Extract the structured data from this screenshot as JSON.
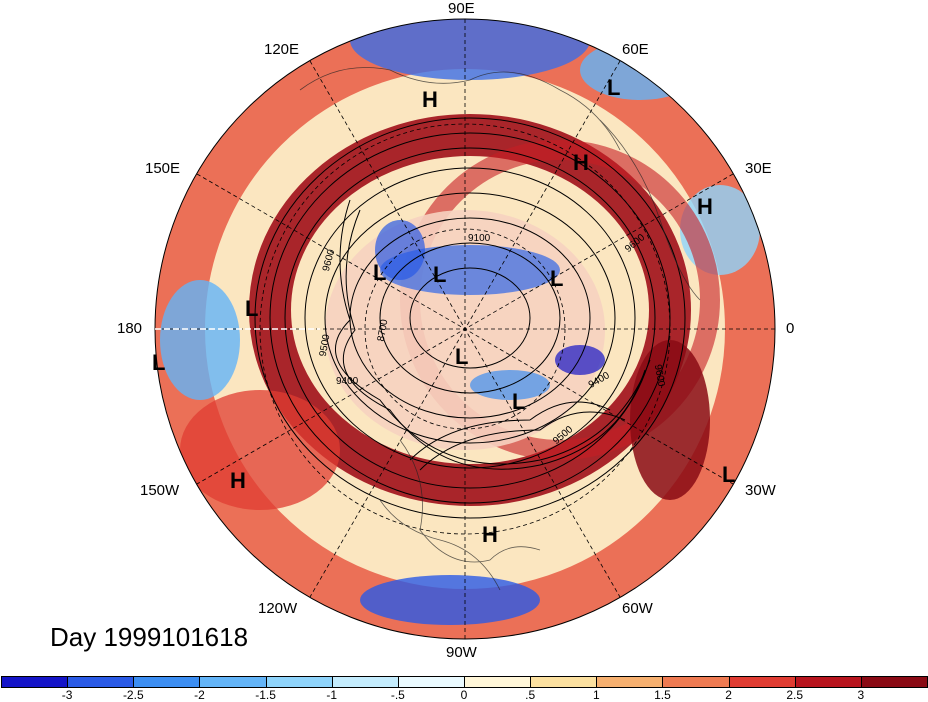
{
  "map": {
    "title": "Day 1999101618",
    "longitude_labels": [
      "90E",
      "60E",
      "30E",
      "0",
      "30W",
      "60W",
      "90W",
      "120W",
      "150W",
      "180",
      "150E",
      "120E"
    ],
    "pressure_centers": [
      {
        "label": "H"
      },
      {
        "label": "L"
      },
      {
        "label": "H"
      },
      {
        "label": "H"
      },
      {
        "label": "L"
      },
      {
        "label": "L"
      },
      {
        "label": "L"
      },
      {
        "label": "L"
      },
      {
        "label": "L"
      },
      {
        "label": "L"
      },
      {
        "label": "L"
      },
      {
        "label": "H"
      },
      {
        "label": "L"
      },
      {
        "label": "H"
      }
    ],
    "contour_labels": [
      "9600",
      "9100",
      "9500",
      "8700",
      "9400",
      "9600",
      "9400",
      "9500",
      "9600"
    ]
  },
  "colorbar": {
    "ticks": [
      "-3",
      "-2.5",
      "-2",
      "-1.5",
      "-1",
      "-.5",
      "0",
      ".5",
      "1",
      "1.5",
      "2",
      "2.5",
      "3"
    ],
    "colors": [
      "#1414c8",
      "#2a5ae6",
      "#3c8ef2",
      "#63b4f7",
      "#8fd4fb",
      "#c4ecfd",
      "#eafaff",
      "#fff6d8",
      "#fbe0a0",
      "#f6b070",
      "#ee7a52",
      "#e03c32",
      "#b8141e",
      "#8a0a14"
    ]
  }
}
